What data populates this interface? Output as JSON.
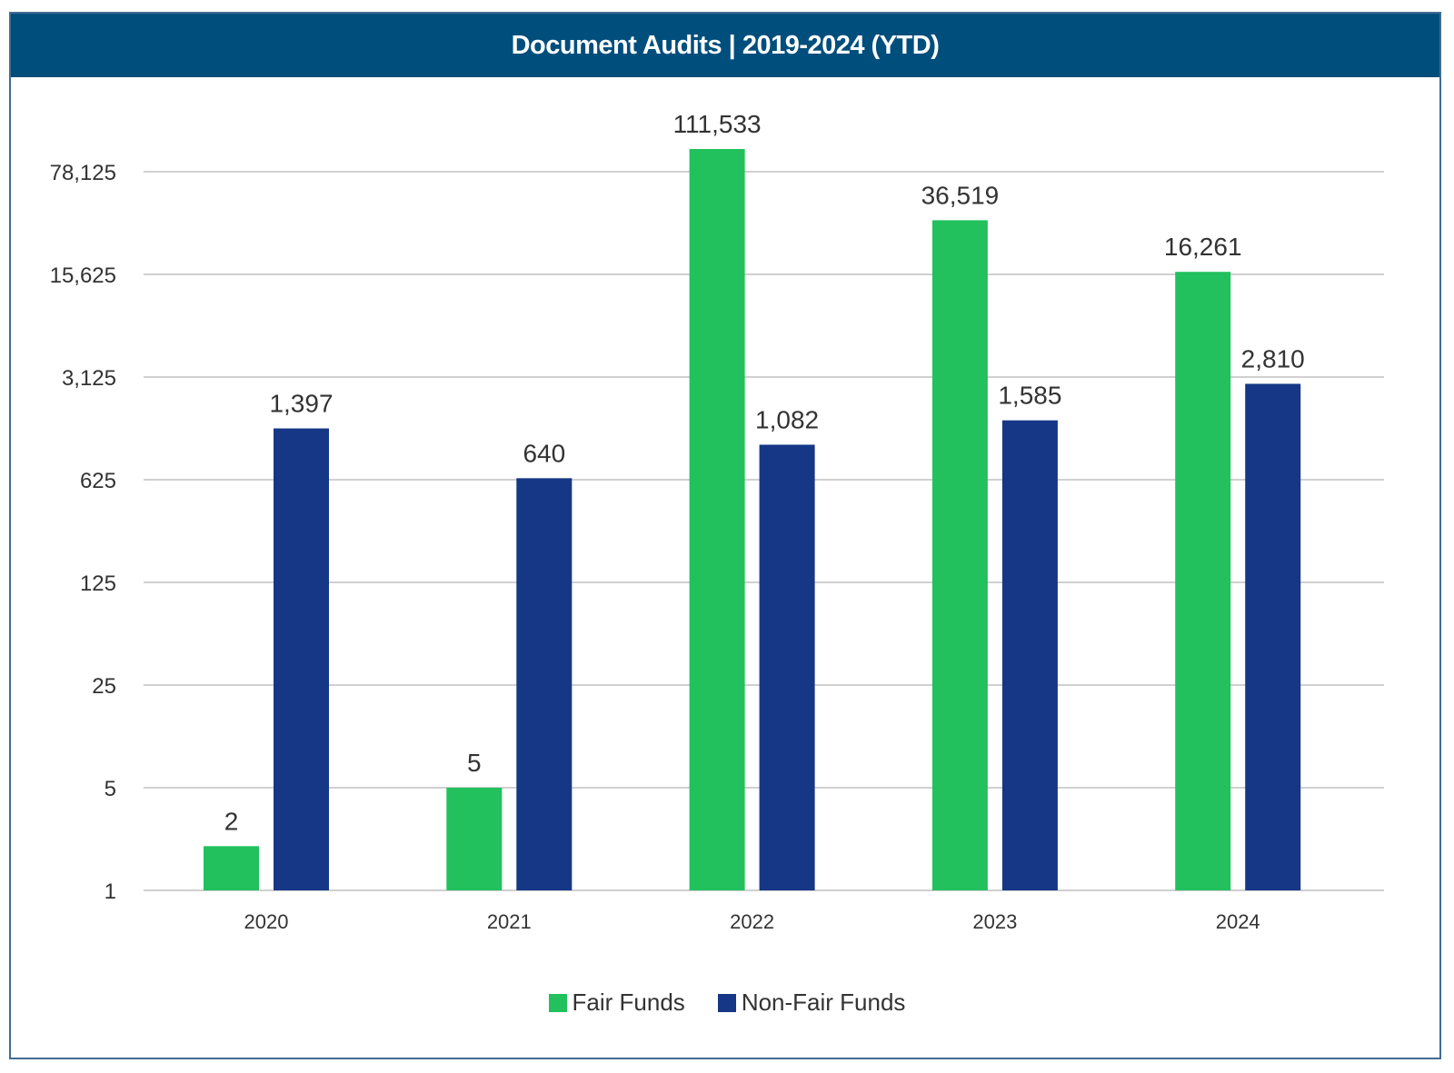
{
  "header": {
    "title": "Document Audits | 2019-2024 (YTD)"
  },
  "colors": {
    "header_bg": "#004e7c",
    "fair_funds": "#22c15e",
    "non_fair_funds": "#163786",
    "gridline": "#c0c0c0",
    "frame": "#3f6d93"
  },
  "chart_data": {
    "type": "bar",
    "title": "Document Audits | 2019-2024 (YTD)",
    "xlabel": "",
    "ylabel": "",
    "yscale": "log",
    "log_base": 5,
    "ylim": [
      1,
      78125
    ],
    "grid": true,
    "legend_position": "bottom",
    "categories": [
      "2020",
      "2021",
      "2022",
      "2023",
      "2024"
    ],
    "y_ticks": [
      1,
      5,
      25,
      125,
      625,
      3125,
      15625,
      78125
    ],
    "y_tick_labels": [
      "1",
      "5",
      "25",
      "125",
      "625",
      "3,125",
      "15,625",
      "78,125"
    ],
    "series": [
      {
        "name": "Fair Funds",
        "color": "#22c15e",
        "values": [
          2,
          5,
          111533,
          36519,
          16261
        ],
        "labels": [
          "2",
          "5",
          "111,533",
          "36,519",
          "16,261"
        ]
      },
      {
        "name": "Non-Fair Funds",
        "color": "#163786",
        "values": [
          1397,
          640,
          1082,
          1585,
          2810
        ],
        "labels": [
          "1,397",
          "640",
          "1,082",
          "1,585",
          "2,810"
        ]
      }
    ]
  }
}
